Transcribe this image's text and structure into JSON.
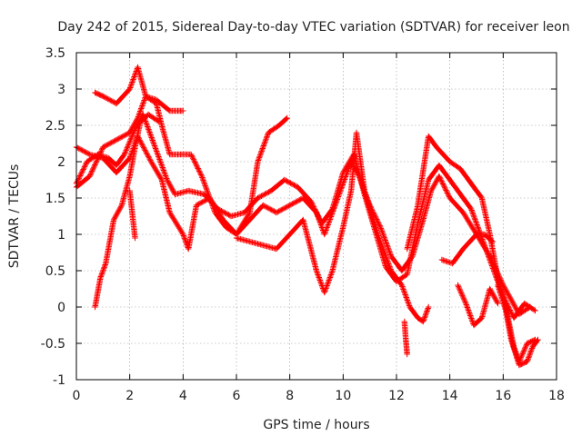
{
  "chart_data": {
    "type": "scatter",
    "title": "Day 242 of 2015, Sidereal Day-to-day VTEC variation (SDTVAR) for receiver leon",
    "xlabel": "GPS time / hours",
    "ylabel": "SDTVAR / TECUs",
    "xlim": [
      0,
      18
    ],
    "ylim": [
      -1,
      3.5
    ],
    "xticks": [
      0,
      2,
      4,
      6,
      8,
      10,
      12,
      14,
      16,
      18
    ],
    "yticks": [
      -1,
      -0.5,
      0,
      0.5,
      1,
      1.5,
      2,
      2.5,
      3,
      3.5
    ],
    "grid": true,
    "marker": "+",
    "color": "#ff0000",
    "series": [
      {
        "name": "track-1",
        "points": [
          [
            0.0,
            1.65
          ],
          [
            0.5,
            1.8
          ],
          [
            1.0,
            2.2
          ],
          [
            1.5,
            2.3
          ],
          [
            2.0,
            2.4
          ],
          [
            2.3,
            2.6
          ],
          [
            2.6,
            2.9
          ],
          [
            3.0,
            2.8
          ],
          [
            3.2,
            2.5
          ],
          [
            3.5,
            2.1
          ],
          [
            4.0,
            2.1
          ],
          [
            4.3,
            2.1
          ],
          [
            4.7,
            1.8
          ],
          [
            5.2,
            1.3
          ],
          [
            5.6,
            1.1
          ],
          [
            6.0,
            1.0
          ],
          [
            6.5,
            1.2
          ],
          [
            7.0,
            1.4
          ],
          [
            7.5,
            1.3
          ],
          [
            8.0,
            1.4
          ],
          [
            8.5,
            1.5
          ],
          [
            9.0,
            1.3
          ],
          [
            9.3,
            1.0
          ],
          [
            9.6,
            1.3
          ],
          [
            10.0,
            1.7
          ],
          [
            10.3,
            2.0
          ],
          [
            10.6,
            1.8
          ],
          [
            11.0,
            1.4
          ],
          [
            11.4,
            1.1
          ],
          [
            11.8,
            0.7
          ],
          [
            12.2,
            0.5
          ],
          [
            12.6,
            0.7
          ],
          [
            13.0,
            1.2
          ],
          [
            13.3,
            1.6
          ],
          [
            13.6,
            1.8
          ],
          [
            14.0,
            1.5
          ],
          [
            14.5,
            1.3
          ],
          [
            15.0,
            1.0
          ],
          [
            15.5,
            0.7
          ],
          [
            16.0,
            0.3
          ],
          [
            16.3,
            0.1
          ],
          [
            16.6,
            -0.1
          ],
          [
            17.0,
            0.0
          ]
        ]
      },
      {
        "name": "track-2",
        "points": [
          [
            0.0,
            1.7
          ],
          [
            0.4,
            2.0
          ],
          [
            0.8,
            2.1
          ],
          [
            1.2,
            2.05
          ],
          [
            1.5,
            1.95
          ],
          [
            1.8,
            2.1
          ],
          [
            2.2,
            2.45
          ],
          [
            2.5,
            2.65
          ],
          [
            2.8,
            2.35
          ],
          [
            3.1,
            2.05
          ],
          [
            3.4,
            1.75
          ],
          [
            3.7,
            1.55
          ],
          [
            4.2,
            1.6
          ],
          [
            4.8,
            1.55
          ],
          [
            5.3,
            1.35
          ],
          [
            5.8,
            1.25
          ],
          [
            6.3,
            1.3
          ],
          [
            6.8,
            1.5
          ],
          [
            7.3,
            1.6
          ],
          [
            7.8,
            1.75
          ],
          [
            8.3,
            1.65
          ],
          [
            8.8,
            1.45
          ],
          [
            9.2,
            1.15
          ],
          [
            9.6,
            1.35
          ],
          [
            10.0,
            1.85
          ],
          [
            10.4,
            2.1
          ],
          [
            10.8,
            1.55
          ],
          [
            11.2,
            1.05
          ],
          [
            11.6,
            0.55
          ],
          [
            12.0,
            0.35
          ],
          [
            12.4,
            0.45
          ],
          [
            12.8,
            1.15
          ],
          [
            13.2,
            1.75
          ],
          [
            13.6,
            1.95
          ],
          [
            14.0,
            1.75
          ],
          [
            14.4,
            1.55
          ],
          [
            14.8,
            1.35
          ],
          [
            15.2,
            0.95
          ],
          [
            15.6,
            0.55
          ],
          [
            16.0,
            0.15
          ],
          [
            16.4,
            -0.15
          ],
          [
            16.8,
            0.05
          ],
          [
            17.2,
            -0.05
          ]
        ]
      },
      {
        "name": "track-3",
        "points": [
          [
            0.7,
            2.95
          ],
          [
            1.0,
            2.9
          ],
          [
            1.5,
            2.8
          ],
          [
            2.0,
            3.0
          ],
          [
            2.3,
            3.3
          ],
          [
            2.6,
            2.9
          ],
          [
            3.0,
            2.85
          ],
          [
            3.5,
            2.7
          ],
          [
            4.0,
            2.7
          ]
        ]
      },
      {
        "name": "track-4",
        "points": [
          [
            0.0,
            2.2
          ],
          [
            0.5,
            2.1
          ],
          [
            1.0,
            2.05
          ],
          [
            1.5,
            1.85
          ],
          [
            2.0,
            2.05
          ],
          [
            2.3,
            2.35
          ],
          [
            2.8,
            2.0
          ],
          [
            3.2,
            1.75
          ],
          [
            3.5,
            1.3
          ],
          [
            4.0,
            1.0
          ],
          [
            4.2,
            0.8
          ],
          [
            4.5,
            1.4
          ],
          [
            5.0,
            1.5
          ],
          [
            5.5,
            1.2
          ],
          [
            6.0,
            1.0
          ],
          [
            6.5,
            1.3
          ],
          [
            6.8,
            2.0
          ],
          [
            7.2,
            2.4
          ],
          [
            7.6,
            2.5
          ],
          [
            7.9,
            2.6
          ]
        ]
      },
      {
        "name": "track-5",
        "points": [
          [
            0.7,
            0.0
          ],
          [
            0.9,
            0.4
          ],
          [
            1.1,
            0.6
          ],
          [
            1.4,
            1.2
          ],
          [
            1.7,
            1.4
          ],
          [
            2.0,
            1.8
          ],
          [
            2.2,
            2.2
          ],
          [
            2.4,
            2.55
          ],
          [
            2.7,
            2.65
          ],
          [
            3.1,
            2.55
          ]
        ]
      },
      {
        "name": "track-6",
        "points": [
          [
            2.0,
            1.6
          ],
          [
            2.2,
            0.95
          ]
        ]
      },
      {
        "name": "track-7",
        "points": [
          [
            6.0,
            0.95
          ],
          [
            6.5,
            0.9
          ],
          [
            7.0,
            0.85
          ],
          [
            7.5,
            0.8
          ],
          [
            8.0,
            1.0
          ],
          [
            8.5,
            1.2
          ],
          [
            9.0,
            0.5
          ],
          [
            9.3,
            0.2
          ],
          [
            9.6,
            0.5
          ],
          [
            10.0,
            1.1
          ],
          [
            10.3,
            1.6
          ],
          [
            10.5,
            2.4
          ],
          [
            10.8,
            1.6
          ],
          [
            11.3,
            1.0
          ],
          [
            11.8,
            0.5
          ],
          [
            12.2,
            0.3
          ],
          [
            12.5,
            0.0
          ],
          [
            12.8,
            -0.15
          ],
          [
            13.0,
            -0.2
          ],
          [
            13.2,
            0.0
          ]
        ]
      },
      {
        "name": "track-8",
        "points": [
          [
            12.3,
            -0.2
          ],
          [
            12.35,
            -0.45
          ],
          [
            12.4,
            -0.65
          ]
        ]
      },
      {
        "name": "track-9",
        "points": [
          [
            12.4,
            0.8
          ],
          [
            12.8,
            1.4
          ],
          [
            13.2,
            2.35
          ],
          [
            13.5,
            2.2
          ],
          [
            14.0,
            2.0
          ],
          [
            14.4,
            1.9
          ],
          [
            14.8,
            1.7
          ],
          [
            15.2,
            1.5
          ],
          [
            15.5,
            1.0
          ],
          [
            15.8,
            0.4
          ],
          [
            16.1,
            0.0
          ],
          [
            16.4,
            -0.55
          ],
          [
            16.6,
            -0.75
          ],
          [
            16.9,
            -0.5
          ],
          [
            17.2,
            -0.45
          ]
        ]
      },
      {
        "name": "track-10",
        "points": [
          [
            13.7,
            0.65
          ],
          [
            14.1,
            0.6
          ],
          [
            14.5,
            0.8
          ],
          [
            15.0,
            1.0
          ],
          [
            15.3,
            1.0
          ],
          [
            15.6,
            0.9
          ]
        ]
      },
      {
        "name": "track-11",
        "points": [
          [
            14.3,
            0.3
          ],
          [
            14.6,
            0.05
          ],
          [
            14.9,
            -0.25
          ],
          [
            15.2,
            -0.15
          ],
          [
            15.5,
            0.25
          ],
          [
            15.8,
            0.05
          ]
        ]
      },
      {
        "name": "track-12",
        "points": [
          [
            15.8,
            0.3
          ],
          [
            16.1,
            -0.05
          ],
          [
            16.3,
            -0.45
          ],
          [
            16.6,
            -0.8
          ],
          [
            16.9,
            -0.75
          ],
          [
            17.1,
            -0.55
          ],
          [
            17.3,
            -0.45
          ]
        ]
      }
    ]
  }
}
